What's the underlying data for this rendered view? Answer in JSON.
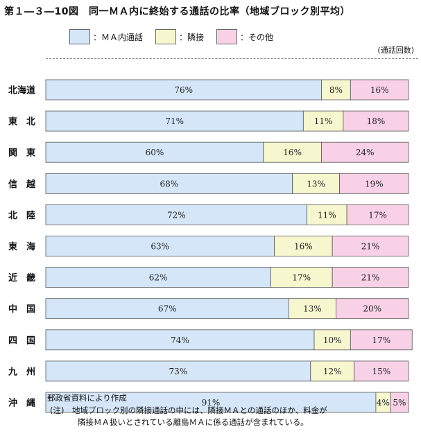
{
  "title": "第１―３―10図　同一ＭＡ内に終始する通話の比率（地域ブロック別平均）",
  "unit_label": "(通話回数)",
  "source_note": "郵政省資料により作成",
  "footnote": {
    "line1": "(注)　地域ブロック別の隣接通話の中には、隣接ＭＡとの通話のほか、料金が",
    "line2": "隣接ＭＡ扱いとされている離島ＭＡに係る通話が含まれている。"
  },
  "legend": [
    {
      "label": "：ＭＡ内通話",
      "color": "#d4e6f7"
    },
    {
      "label": "：隣接",
      "color": "#f7f7cf"
    },
    {
      "label": "：その他",
      "color": "#f8d1e6"
    }
  ],
  "chart_data": {
    "type": "bar",
    "orientation": "horizontal",
    "stacked": true,
    "xlim": [
      0,
      100
    ],
    "categories": [
      "北海道",
      "東　北",
      "関　東",
      "信　越",
      "北　陸",
      "東　海",
      "近　畿",
      "中　国",
      "四　国",
      "九　州",
      "沖　縄"
    ],
    "series": [
      {
        "name": "ＭＡ内通話",
        "color": "#d4e6f7",
        "values": [
          76,
          71,
          60,
          68,
          72,
          63,
          62,
          67,
          74,
          73,
          91
        ]
      },
      {
        "name": "隣接",
        "color": "#f7f7cf",
        "values": [
          8,
          11,
          16,
          13,
          11,
          16,
          17,
          13,
          10,
          12,
          4
        ]
      },
      {
        "name": "その他",
        "color": "#f8d1e6",
        "values": [
          16,
          18,
          24,
          19,
          17,
          21,
          21,
          20,
          17,
          15,
          5
        ]
      }
    ],
    "value_suffix": "%"
  }
}
